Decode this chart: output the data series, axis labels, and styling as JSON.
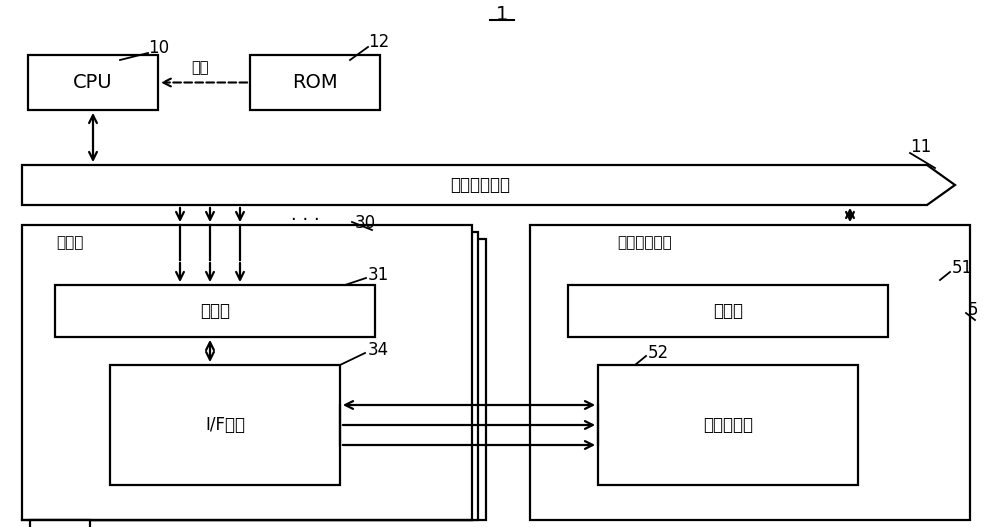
{
  "bg_color": "#ffffff",
  "lc": "#000000",
  "fig_label": "1",
  "label_cpu": "CPU",
  "label_rom": "ROM",
  "label_bus": "内部外围总线",
  "label_timer": "定时器",
  "label_reg": "寄存器",
  "label_if": "I/F电路",
  "label_timing": "定时管理电路",
  "label_counter": "计数器电路",
  "label_code": "代码",
  "ref_1": "1",
  "ref_5": "5",
  "ref_10": "10",
  "ref_11": "11",
  "ref_12": "12",
  "ref_30": "30",
  "ref_31": "31",
  "ref_34": "34",
  "ref_51": "51",
  "ref_52": "52"
}
